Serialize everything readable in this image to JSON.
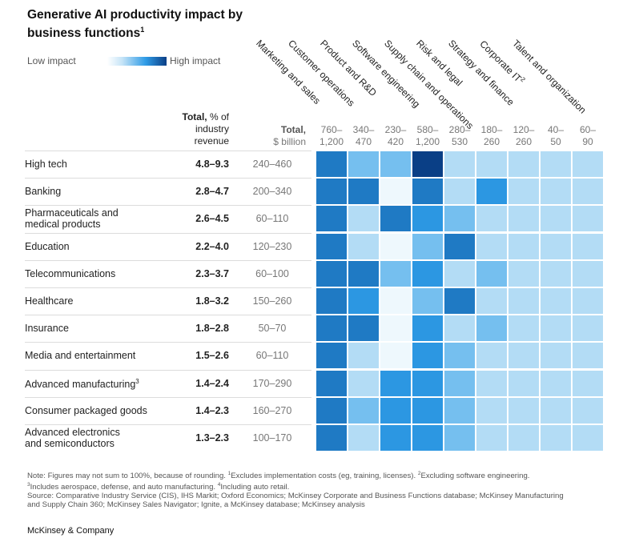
{
  "title": "Generative AI productivity impact by business functions",
  "title_sup": "1",
  "legend": {
    "low": "Low impact",
    "high": "High impact",
    "scale_colors": [
      "#ffffff",
      "#c6e4f7",
      "#2f9be6",
      "#0b3f86"
    ]
  },
  "headers": {
    "total_pct_bold": "Total,",
    "total_pct_rest1": " % of",
    "total_pct_rest2": "industry",
    "total_pct_rest3": "revenue",
    "total_bn_bold": "Total,",
    "total_bn_rest": "$ billion"
  },
  "columns": [
    {
      "name": "Marketing and sales",
      "sup": "",
      "total_line1": "760–",
      "total_line2": "1,200"
    },
    {
      "name": "Customer operations",
      "sup": "",
      "total_line1": "340–",
      "total_line2": "470"
    },
    {
      "name": "Product and R&D",
      "sup": "",
      "total_line1": "230–",
      "total_line2": "420"
    },
    {
      "name": "Software engineering",
      "sup": "",
      "total_line1": "580–",
      "total_line2": "1,200"
    },
    {
      "name": "Supply chain and operations",
      "sup": "",
      "total_line1": "280–",
      "total_line2": "530"
    },
    {
      "name": "Risk and legal",
      "sup": "",
      "total_line1": "180–",
      "total_line2": "260"
    },
    {
      "name": "Strategy and finance",
      "sup": "",
      "total_line1": "120–",
      "total_line2": "260"
    },
    {
      "name": "Corporate IT",
      "sup": "2",
      "total_line1": "40–",
      "total_line2": "50"
    },
    {
      "name": "Talent and organization",
      "sup": "",
      "total_line1": "60–",
      "total_line2": "90"
    }
  ],
  "chart_data": {
    "type": "heatmap",
    "title": "Generative AI productivity impact by business functions",
    "x_categories": [
      "Marketing and sales",
      "Customer operations",
      "Product and R&D",
      "Software engineering",
      "Supply chain and operations",
      "Risk and legal",
      "Strategy and finance",
      "Corporate IT",
      "Talent and organization"
    ],
    "scale": "impact level 0 (low) to 5 (high)",
    "rows": [
      {
        "label": "High tech",
        "label2": "",
        "sup": "",
        "pct": "4.8–9.3",
        "total": "240–460",
        "values": [
          4,
          2,
          2,
          5,
          1,
          1,
          1,
          1,
          1
        ]
      },
      {
        "label": "Banking",
        "label2": "",
        "sup": "",
        "pct": "2.8–4.7",
        "total": "200–340",
        "values": [
          4,
          4,
          0,
          4,
          1,
          3,
          1,
          1,
          1
        ]
      },
      {
        "label": "Pharmaceuticals and",
        "label2": "medical products",
        "sup": "",
        "pct": "2.6–4.5",
        "total": "60–110",
        "values": [
          4,
          1,
          4,
          3,
          2,
          1,
          1,
          1,
          1
        ]
      },
      {
        "label": "Education",
        "label2": "",
        "sup": "",
        "pct": "2.2–4.0",
        "total": "120–230",
        "values": [
          4,
          1,
          0,
          2,
          4,
          1,
          1,
          1,
          1
        ]
      },
      {
        "label": "Telecommunications",
        "label2": "",
        "sup": "",
        "pct": "2.3–3.7",
        "total": "60–100",
        "values": [
          4,
          4,
          2,
          3,
          1,
          2,
          1,
          1,
          1
        ]
      },
      {
        "label": "Healthcare",
        "label2": "",
        "sup": "",
        "pct": "1.8–3.2",
        "total": "150–260",
        "values": [
          4,
          3,
          0,
          2,
          4,
          1,
          1,
          1,
          1
        ]
      },
      {
        "label": "Insurance",
        "label2": "",
        "sup": "",
        "pct": "1.8–2.8",
        "total": "50–70",
        "values": [
          4,
          4,
          0,
          3,
          1,
          2,
          1,
          1,
          1
        ]
      },
      {
        "label": "Media and entertainment",
        "label2": "",
        "sup": "",
        "pct": "1.5–2.6",
        "total": "60–110",
        "values": [
          4,
          1,
          0,
          3,
          2,
          1,
          1,
          1,
          1
        ]
      },
      {
        "label": "Advanced manufacturing",
        "label2": "",
        "sup": "3",
        "pct": "1.4–2.4",
        "total": "170–290",
        "values": [
          4,
          1,
          3,
          3,
          2,
          1,
          1,
          1,
          1
        ]
      },
      {
        "label": "Consumer packaged goods",
        "label2": "",
        "sup": "",
        "pct": "1.4–2.3",
        "total": "160–270",
        "values": [
          4,
          2,
          3,
          3,
          2,
          1,
          1,
          1,
          1
        ]
      },
      {
        "label": "Advanced electronics",
        "label2": "and semiconductors",
        "sup": "",
        "pct": "1.3–2.3",
        "total": "100–170",
        "values": [
          4,
          1,
          3,
          3,
          2,
          1,
          1,
          1,
          1
        ]
      }
    ],
    "level_colors": [
      "#eef8fd",
      "#b3dcf5",
      "#75bfef",
      "#2c97e2",
      "#1f7ac4",
      "#0a3f86"
    ]
  },
  "notes": {
    "line1a": "Note: Figures may not sum to 100%, because of rounding. ",
    "sup1": "1",
    "line1b": "Excludes implementation costs (eg, training, licenses). ",
    "sup2": "2",
    "line1c": "Excluding software engineering.",
    "sup3": "3",
    "line2a": "Includes aerospace, defense, and auto manufacturing. ",
    "sup4": "4",
    "line2b": "Including auto retail.",
    "line3": "Source: Comparative Industry Service (CIS), IHS Markit; Oxford Economics; McKinsey Corporate and Business Functions database; McKinsey Manufacturing",
    "line4": "and Supply Chain 360; McKinsey Sales Navigator; Ignite, a McKinsey database; McKinsey analysis"
  },
  "brand": "McKinsey & Company"
}
